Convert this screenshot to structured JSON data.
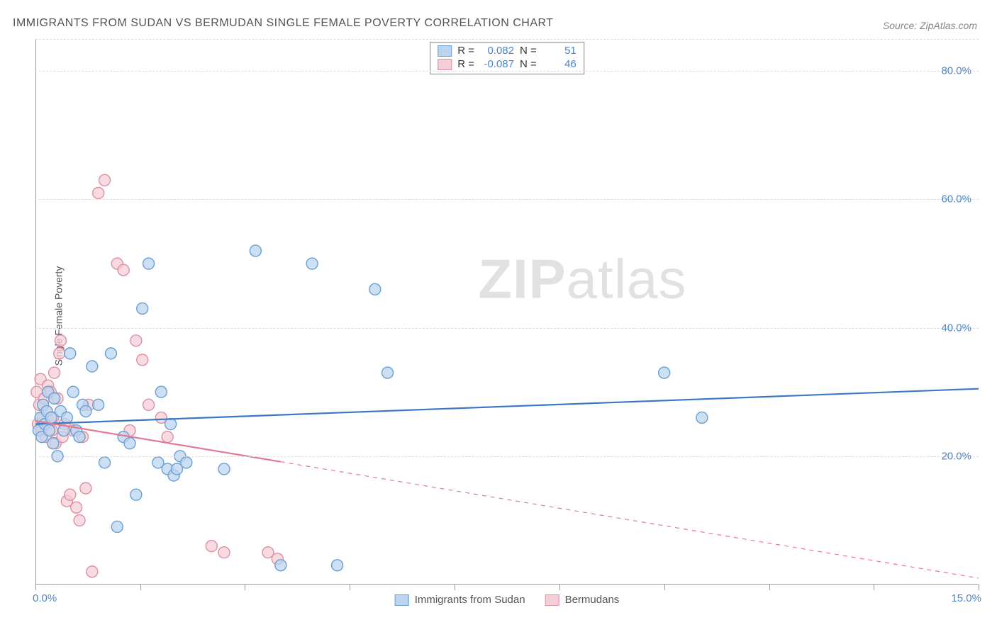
{
  "title": "IMMIGRANTS FROM SUDAN VS BERMUDAN SINGLE FEMALE POVERTY CORRELATION CHART",
  "source": "Source: ZipAtlas.com",
  "y_axis_label": "Single Female Poverty",
  "watermark_bold": "ZIP",
  "watermark_light": "atlas",
  "chart": {
    "type": "scatter-with-regression",
    "x_range": [
      0,
      15
    ],
    "y_range": [
      0,
      85
    ],
    "y_ticks": [
      20,
      40,
      60,
      80
    ],
    "y_tick_labels": [
      "20.0%",
      "40.0%",
      "60.0%",
      "80.0%"
    ],
    "x_ticks": [
      0,
      1.67,
      3.33,
      5.0,
      6.67,
      8.33,
      10.0,
      11.67,
      13.33,
      15.0
    ],
    "x_start_label": "0.0%",
    "x_end_label": "15.0%",
    "grid_color": "#dddddd",
    "background_color": "#ffffff",
    "axis_color": "#999999",
    "marker_radius": 8,
    "marker_stroke_width": 1.4,
    "line_width": 2.2,
    "series": [
      {
        "name": "Immigrants from Sudan",
        "fill": "#bcd4ee",
        "stroke": "#6a9fd4",
        "line_color": "#3b78c4",
        "R": "0.082",
        "N": "51",
        "regression": {
          "x1": 0,
          "y1": 25.0,
          "x2": 15,
          "y2": 30.5,
          "dash": null,
          "solid_until_x": 15
        },
        "points": [
          [
            0.05,
            24
          ],
          [
            0.08,
            26
          ],
          [
            0.1,
            23
          ],
          [
            0.12,
            28
          ],
          [
            0.15,
            25
          ],
          [
            0.18,
            27
          ],
          [
            0.2,
            30
          ],
          [
            0.22,
            24
          ],
          [
            0.25,
            26
          ],
          [
            0.28,
            22
          ],
          [
            0.3,
            29
          ],
          [
            0.35,
            20
          ],
          [
            0.4,
            27
          ],
          [
            0.45,
            24
          ],
          [
            0.5,
            26
          ],
          [
            0.55,
            36
          ],
          [
            0.6,
            30
          ],
          [
            0.65,
            24
          ],
          [
            0.7,
            23
          ],
          [
            0.75,
            28
          ],
          [
            0.8,
            27
          ],
          [
            0.9,
            34
          ],
          [
            1.0,
            28
          ],
          [
            1.1,
            19
          ],
          [
            1.2,
            36
          ],
          [
            1.3,
            9
          ],
          [
            1.4,
            23
          ],
          [
            1.5,
            22
          ],
          [
            1.6,
            14
          ],
          [
            1.7,
            43
          ],
          [
            1.8,
            50
          ],
          [
            1.95,
            19
          ],
          [
            2.0,
            30
          ],
          [
            2.1,
            18
          ],
          [
            2.15,
            25
          ],
          [
            2.2,
            17
          ],
          [
            2.25,
            18
          ],
          [
            2.3,
            20
          ],
          [
            2.4,
            19
          ],
          [
            3.0,
            18
          ],
          [
            3.5,
            52
          ],
          [
            3.9,
            3
          ],
          [
            4.4,
            50
          ],
          [
            4.8,
            3
          ],
          [
            5.4,
            46
          ],
          [
            5.6,
            33
          ],
          [
            10.0,
            33
          ],
          [
            10.6,
            26
          ]
        ]
      },
      {
        "name": "Bermudans",
        "fill": "#f5cdd7",
        "stroke": "#de8fa3",
        "line_color": "#e27a93",
        "R": "-0.087",
        "N": "46",
        "regression": {
          "x1": 0,
          "y1": 25.5,
          "x2": 15,
          "y2": 1.0,
          "dash": "6,6",
          "solid_until_x": 3.9
        },
        "points": [
          [
            0.02,
            30
          ],
          [
            0.04,
            25
          ],
          [
            0.06,
            28
          ],
          [
            0.08,
            32
          ],
          [
            0.1,
            24
          ],
          [
            0.12,
            26
          ],
          [
            0.14,
            29
          ],
          [
            0.16,
            23
          ],
          [
            0.18,
            27
          ],
          [
            0.2,
            31
          ],
          [
            0.22,
            25
          ],
          [
            0.24,
            30
          ],
          [
            0.26,
            24
          ],
          [
            0.28,
            26
          ],
          [
            0.3,
            33
          ],
          [
            0.32,
            22
          ],
          [
            0.35,
            29
          ],
          [
            0.38,
            36
          ],
          [
            0.4,
            38
          ],
          [
            0.43,
            23
          ],
          [
            0.46,
            25
          ],
          [
            0.5,
            13
          ],
          [
            0.55,
            14
          ],
          [
            0.6,
            24
          ],
          [
            0.65,
            12
          ],
          [
            0.7,
            10
          ],
          [
            0.75,
            23
          ],
          [
            0.8,
            15
          ],
          [
            0.85,
            28
          ],
          [
            0.9,
            2
          ],
          [
            1.0,
            61
          ],
          [
            1.1,
            63
          ],
          [
            1.3,
            50
          ],
          [
            1.4,
            49
          ],
          [
            1.5,
            24
          ],
          [
            1.6,
            38
          ],
          [
            1.7,
            35
          ],
          [
            1.8,
            28
          ],
          [
            2.0,
            26
          ],
          [
            2.1,
            23
          ],
          [
            2.8,
            6
          ],
          [
            3.0,
            5
          ],
          [
            3.7,
            5
          ],
          [
            3.85,
            4
          ]
        ]
      }
    ]
  },
  "stats_labels": {
    "R": "R =",
    "N": "N ="
  },
  "legend_bottom": [
    "Immigrants from Sudan",
    "Bermudans"
  ]
}
